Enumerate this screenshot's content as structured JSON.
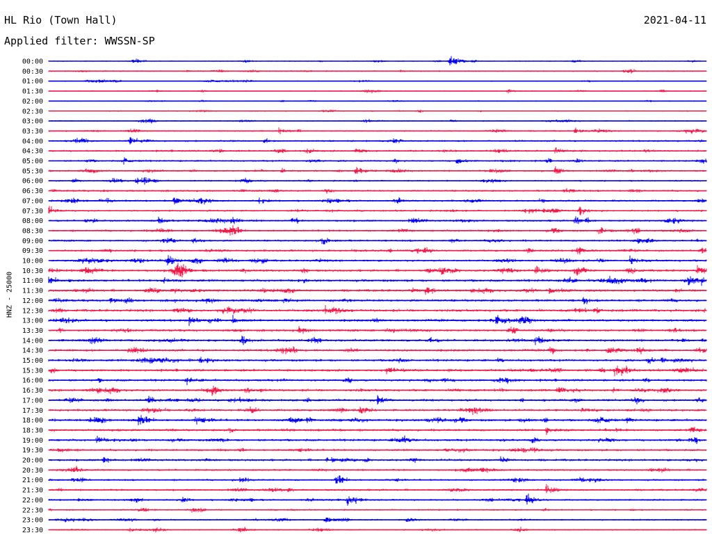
{
  "header": {
    "station": "HL Rio (Town Hall)",
    "date": "2021-04-11",
    "filter": "Applied filter: WWSSN-SP"
  },
  "chart_data": {
    "type": "line",
    "title": "HL Rio (Town Hall)",
    "subtitle": "Applied filter: WWSSN-SP",
    "date": "2021-04-11",
    "ylabel": "HNZ - 25000",
    "row_labels": [
      "00:00",
      "00:30",
      "01:00",
      "01:30",
      "02:00",
      "02:30",
      "03:00",
      "03:30",
      "04:00",
      "04:30",
      "05:00",
      "05:30",
      "06:00",
      "06:30",
      "07:00",
      "07:30",
      "08:00",
      "08:30",
      "09:00",
      "09:30",
      "10:00",
      "10:30",
      "11:00",
      "11:30",
      "12:00",
      "12:30",
      "13:00",
      "13:30",
      "14:00",
      "14:30",
      "15:00",
      "15:30",
      "16:00",
      "16:30",
      "17:00",
      "17:30",
      "18:00",
      "18:30",
      "19:00",
      "19:30",
      "20:00",
      "20:30",
      "21:00",
      "21:30",
      "22:00",
      "22:30",
      "23:00",
      "23:30"
    ],
    "row_amplitudes": [
      0.6,
      0.9,
      0.6,
      0.6,
      0.5,
      0.7,
      0.8,
      1.0,
      1.3,
      1.4,
      1.3,
      1.3,
      1.1,
      1.4,
      1.4,
      1.4,
      1.5,
      1.5,
      1.5,
      1.6,
      1.6,
      1.8,
      1.9,
      1.9,
      1.9,
      2.0,
      1.9,
      1.8,
      1.9,
      1.8,
      1.8,
      1.9,
      1.8,
      1.8,
      1.8,
      1.8,
      1.8,
      1.7,
      1.8,
      1.6,
      1.7,
      1.4,
      1.3,
      1.4,
      1.3,
      1.1,
      1.0,
      0.9
    ],
    "series_colors": [
      "#0000ee",
      "#ee1a4a"
    ],
    "events": [
      {
        "row": 0,
        "time_min": 18.3,
        "amp": 18
      },
      {
        "row": 0,
        "time_min": 23.9,
        "amp": 4
      },
      {
        "row": 3,
        "time_min": 20.9,
        "amp": 4
      },
      {
        "row": 7,
        "time_min": 10.5,
        "amp": 6
      },
      {
        "row": 7,
        "time_min": 24.0,
        "amp": 6
      },
      {
        "row": 8,
        "time_min": 3.7,
        "amp": 7
      },
      {
        "row": 9,
        "time_min": 14.0,
        "amp": 7
      },
      {
        "row": 9,
        "time_min": 23.1,
        "amp": 8
      },
      {
        "row": 10,
        "time_min": 3.4,
        "amp": 8
      },
      {
        "row": 10,
        "time_min": 18.6,
        "amp": 7
      },
      {
        "row": 11,
        "time_min": 14.0,
        "amp": 9
      },
      {
        "row": 11,
        "time_min": 23.1,
        "amp": 8
      },
      {
        "row": 12,
        "time_min": 4.0,
        "amp": 7
      },
      {
        "row": 13,
        "time_min": 23.5,
        "amp": 7
      },
      {
        "row": 14,
        "time_min": 2.6,
        "amp": 6
      },
      {
        "row": 14,
        "time_min": 5.7,
        "amp": 9
      },
      {
        "row": 14,
        "time_min": 9.6,
        "amp": 7
      },
      {
        "row": 15,
        "time_min": 24.2,
        "amp": 9
      },
      {
        "row": 16,
        "time_min": 5.0,
        "amp": 6
      },
      {
        "row": 16,
        "time_min": 24.0,
        "amp": 10
      },
      {
        "row": 17,
        "time_min": 25.1,
        "amp": 8
      },
      {
        "row": 18,
        "time_min": 6.6,
        "amp": 7
      },
      {
        "row": 18,
        "time_min": 12.5,
        "amp": 8
      },
      {
        "row": 19,
        "time_min": 24.1,
        "amp": 9
      },
      {
        "row": 20,
        "time_min": 5.4,
        "amp": 8
      },
      {
        "row": 20,
        "time_min": 26.5,
        "amp": 9
      },
      {
        "row": 21,
        "time_min": 17.2,
        "amp": 8
      },
      {
        "row": 21,
        "time_min": 22.2,
        "amp": 8
      },
      {
        "row": 21,
        "time_min": 24.0,
        "amp": 10
      },
      {
        "row": 21,
        "time_min": 29.6,
        "amp": 10
      },
      {
        "row": 22,
        "time_min": 5.2,
        "amp": 7
      },
      {
        "row": 22,
        "time_min": 29.2,
        "amp": 9
      },
      {
        "row": 23,
        "time_min": 17.2,
        "amp": 8
      },
      {
        "row": 23,
        "time_min": 22.8,
        "amp": 9
      },
      {
        "row": 24,
        "time_min": 2.8,
        "amp": 7
      },
      {
        "row": 24,
        "time_min": 10.7,
        "amp": 8
      },
      {
        "row": 25,
        "time_min": 12.6,
        "amp": 9
      },
      {
        "row": 25,
        "time_min": 13.0,
        "amp": 10
      },
      {
        "row": 25,
        "time_min": 24.9,
        "amp": 7
      },
      {
        "row": 26,
        "time_min": 6.4,
        "amp": 8
      },
      {
        "row": 26,
        "time_min": 8.4,
        "amp": 8
      },
      {
        "row": 26,
        "time_min": 20.4,
        "amp": 7
      },
      {
        "row": 27,
        "time_min": 11.4,
        "amp": 7
      },
      {
        "row": 28,
        "time_min": 8.8,
        "amp": 8
      },
      {
        "row": 28,
        "time_min": 22.2,
        "amp": 10
      },
      {
        "row": 28,
        "time_min": 17.3,
        "amp": 7
      },
      {
        "row": 29,
        "time_min": 25.5,
        "amp": 8
      },
      {
        "row": 30,
        "time_min": 6.9,
        "amp": 7
      },
      {
        "row": 31,
        "time_min": 15.4,
        "amp": 9
      },
      {
        "row": 31,
        "time_min": 25.8,
        "amp": 7
      },
      {
        "row": 32,
        "time_min": 6.3,
        "amp": 7
      },
      {
        "row": 32,
        "time_min": 17.9,
        "amp": 6
      },
      {
        "row": 33,
        "time_min": 23.2,
        "amp": 7
      },
      {
        "row": 34,
        "time_min": 4.5,
        "amp": 9
      },
      {
        "row": 34,
        "time_min": 15.0,
        "amp": 8
      },
      {
        "row": 35,
        "time_min": 14.2,
        "amp": 8
      },
      {
        "row": 35,
        "time_min": 24.3,
        "amp": 7
      },
      {
        "row": 36,
        "time_min": 4.1,
        "amp": 8
      },
      {
        "row": 36,
        "time_min": 6.7,
        "amp": 9
      },
      {
        "row": 37,
        "time_min": 22.7,
        "amp": 7
      },
      {
        "row": 37,
        "time_min": 29.3,
        "amp": 8
      },
      {
        "row": 38,
        "time_min": 2.2,
        "amp": 8
      },
      {
        "row": 39,
        "time_min": 22.0,
        "amp": 8
      },
      {
        "row": 40,
        "time_min": 2.5,
        "amp": 9
      },
      {
        "row": 40,
        "time_min": 12.7,
        "amp": 8
      },
      {
        "row": 40,
        "time_min": 20.6,
        "amp": 8
      },
      {
        "row": 42,
        "time_min": 8.7,
        "amp": 6
      },
      {
        "row": 42,
        "time_min": 13.1,
        "amp": 9
      },
      {
        "row": 43,
        "time_min": 22.7,
        "amp": 10
      },
      {
        "row": 44,
        "time_min": 13.6,
        "amp": 9
      },
      {
        "row": 44,
        "time_min": 21.8,
        "amp": 12
      },
      {
        "row": 46,
        "time_min": 12.6,
        "amp": 8
      },
      {
        "row": 46,
        "time_min": 16.3,
        "amp": 7
      },
      {
        "row": 47,
        "time_min": 8.7,
        "amp": 9
      }
    ]
  }
}
